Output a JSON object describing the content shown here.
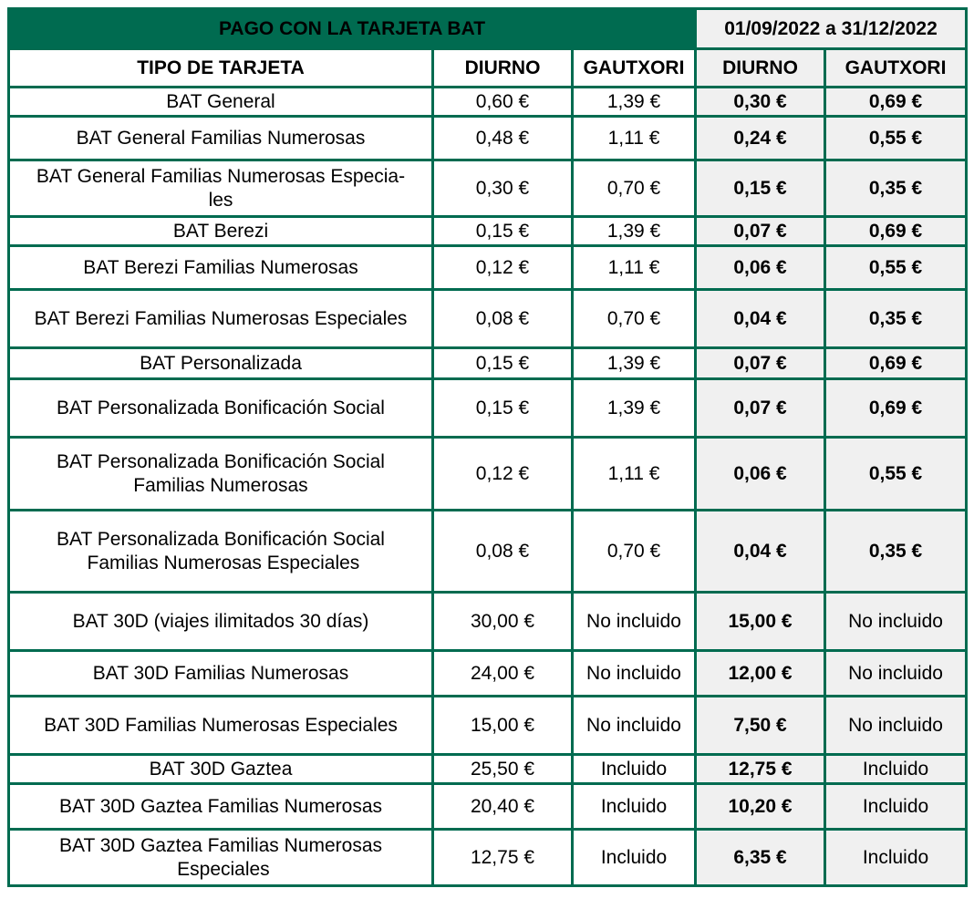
{
  "header": {
    "title": "PAGO CON LA TARJETA BAT",
    "period": "01/09/2022 a 31/12/2022"
  },
  "columns": {
    "tipo": "TIPO DE TARJETA",
    "diurno": "DIURNO",
    "gautxori": "GAUTXORI",
    "promo_diurno": "DIURNO",
    "promo_gautxori": "GAUTXORI"
  },
  "rows": [
    {
      "lines": [
        "BAT General"
      ],
      "diurno": "0,60 €",
      "gautxori": "1,39 €",
      "promo_diurno": "0,30 €",
      "promo_gautxori": "0,69 €"
    },
    {
      "lines": [
        "BAT General Familias Numerosas"
      ],
      "diurno": "0,48 €",
      "gautxori": "1,11 €",
      "promo_diurno": "0,24 €",
      "promo_gautxori": "0,55 €"
    },
    {
      "lines": [
        "BAT General Familias Numerosas Especia-",
        "les"
      ],
      "diurno": "0,30 €",
      "gautxori": "0,70 €",
      "promo_diurno": "0,15 €",
      "promo_gautxori": "0,35 €"
    },
    {
      "lines": [
        "BAT Berezi"
      ],
      "diurno": "0,15 €",
      "gautxori": "1,39 €",
      "promo_diurno": "0,07 €",
      "promo_gautxori": "0,69 €"
    },
    {
      "lines": [
        "BAT Berezi Familias Numerosas"
      ],
      "diurno": "0,12 €",
      "gautxori": "1,11 €",
      "promo_diurno": "0,06 €",
      "promo_gautxori": "0,55 €"
    },
    {
      "lines": [
        "BAT Berezi Familias Numerosas Especiales"
      ],
      "diurno": "0,08 €",
      "gautxori": "0,70 €",
      "promo_diurno": "0,04 €",
      "promo_gautxori": "0,35 €"
    },
    {
      "lines": [
        "BAT Personalizada"
      ],
      "diurno": "0,15 €",
      "gautxori": "1,39 €",
      "promo_diurno": "0,07 €",
      "promo_gautxori": "0,69 €"
    },
    {
      "lines": [
        "BAT Personalizada Bonificación Social"
      ],
      "diurno": "0,15 €",
      "gautxori": "1,39 €",
      "promo_diurno": "0,07 €",
      "promo_gautxori": "0,69 €"
    },
    {
      "lines": [
        "BAT Personalizada Bonificación Social",
        "Familias Numerosas"
      ],
      "diurno": "0,12 €",
      "gautxori": "1,11 €",
      "promo_diurno": "0,06 €",
      "promo_gautxori": "0,55 €"
    },
    {
      "lines": [
        "BAT Personalizada Bonificación Social",
        " Familias Numerosas Especiales"
      ],
      "diurno": "0,08 €",
      "gautxori": "0,70 €",
      "promo_diurno": "0,04 €",
      "promo_gautxori": "0,35 €"
    },
    {
      "lines": [
        "BAT 30D (viajes ilimitados 30 días)"
      ],
      "diurno": "30,00 €",
      "gautxori": "No incluido",
      "promo_diurno": "15,00 €",
      "promo_gautxori": "No incluido"
    },
    {
      "lines": [
        "BAT 30D Familias Numerosas"
      ],
      "diurno": "24,00 €",
      "gautxori": "No incluido",
      "promo_diurno": "12,00 €",
      "promo_gautxori": "No incluido"
    },
    {
      "lines": [
        "BAT 30D Familias Numerosas Especiales"
      ],
      "diurno": "15,00 €",
      "gautxori": "No incluido",
      "promo_diurno": "7,50 €",
      "promo_gautxori": "No incluido"
    },
    {
      "lines": [
        "BAT 30D Gaztea"
      ],
      "diurno": "25,50 €",
      "gautxori": "Incluido",
      "promo_diurno": "12,75 €",
      "promo_gautxori": "Incluido"
    },
    {
      "lines": [
        "BAT 30D Gaztea Familias Numerosas"
      ],
      "diurno": "20,40 €",
      "gautxori": "Incluido",
      "promo_diurno": "10,20 €",
      "promo_gautxori": "Incluido"
    },
    {
      "lines": [
        "BAT 30D Gaztea Familias Numerosas",
        " Especiales"
      ],
      "diurno": "12,75 €",
      "gautxori": "Incluido",
      "promo_diurno": "6,35 €",
      "promo_gautxori": "Incluido"
    }
  ]
}
